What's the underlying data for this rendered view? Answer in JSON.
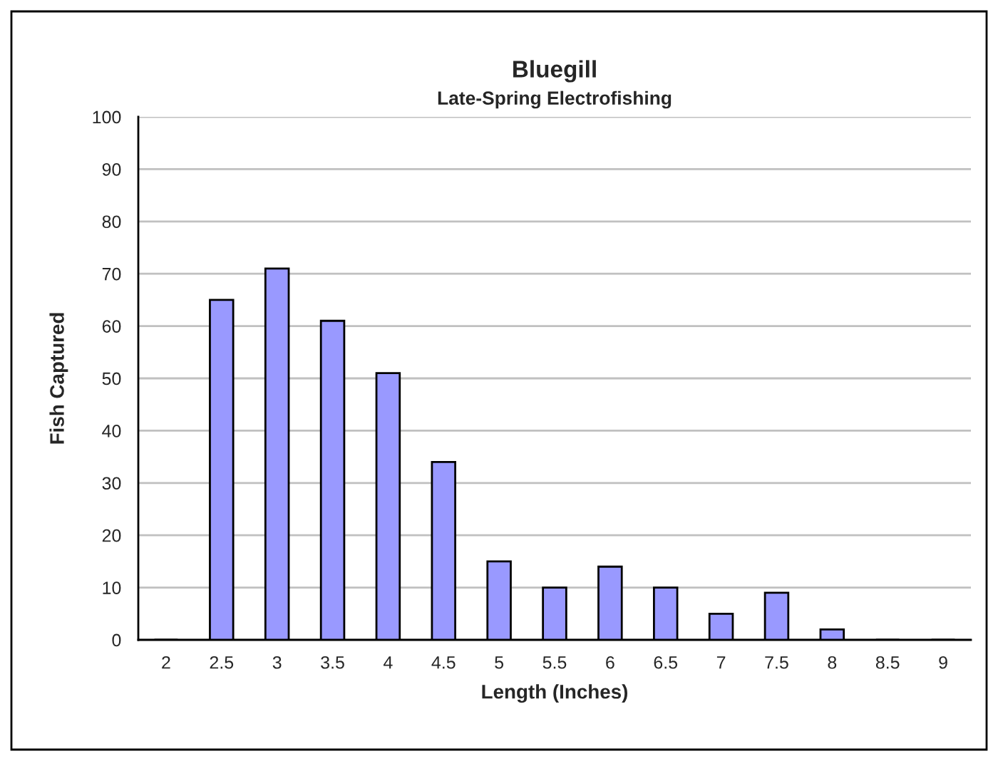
{
  "chart_data": {
    "type": "bar",
    "title": "Bluegill",
    "subtitle": "Late-Spring Electrofishing",
    "xlabel": "Length (Inches)",
    "ylabel": "Fish Captured",
    "categories": [
      "2",
      "2.5",
      "3",
      "3.5",
      "4",
      "4.5",
      "5",
      "5.5",
      "6",
      "6.5",
      "7",
      "7.5",
      "8",
      "8.5",
      "9"
    ],
    "values": [
      0,
      65,
      71,
      61,
      51,
      34,
      15,
      10,
      14,
      10,
      5,
      9,
      2,
      0,
      0
    ],
    "color": "#9999ff",
    "ylim": [
      0,
      100
    ],
    "yticks": [
      0,
      10,
      20,
      30,
      40,
      50,
      60,
      70,
      80,
      90,
      100
    ],
    "grid": "y",
    "legend": false
  }
}
